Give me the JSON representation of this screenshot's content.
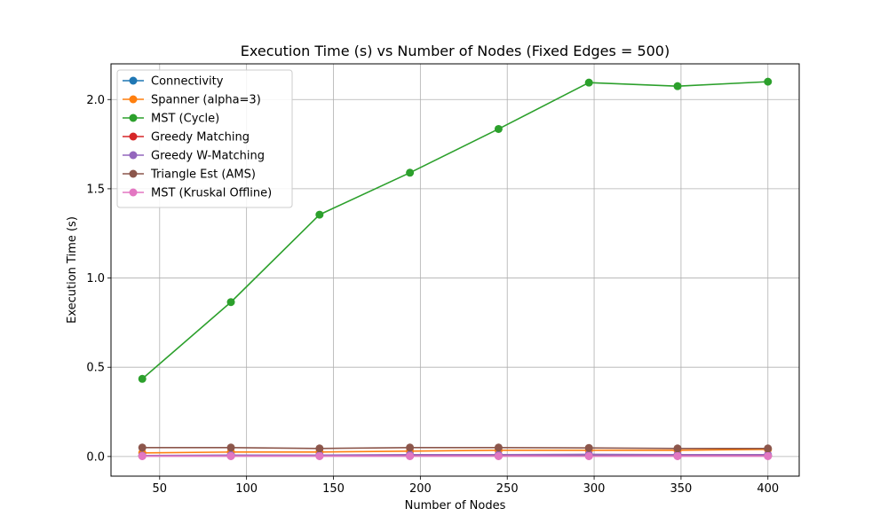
{
  "chart_data": {
    "type": "line",
    "title": "Execution Time (s) vs Number of Nodes (Fixed Edges = 500)",
    "xlabel": "Number of Nodes",
    "ylabel": "Execution Time (s)",
    "xlim": [
      22,
      418
    ],
    "ylim": [
      -0.11,
      2.2
    ],
    "xticks": [
      50,
      100,
      150,
      200,
      250,
      300,
      350,
      400
    ],
    "yticks": [
      0.0,
      0.5,
      1.0,
      1.5,
      2.0
    ],
    "xtick_labels": [
      "50",
      "100",
      "150",
      "200",
      "250",
      "300",
      "350",
      "400"
    ],
    "ytick_labels": [
      "0.0",
      "0.5",
      "1.0",
      "1.5",
      "2.0"
    ],
    "grid": true,
    "legend_position": "top-left",
    "x": [
      40,
      91,
      142,
      194,
      245,
      297,
      348,
      400
    ],
    "series": [
      {
        "name": "Connectivity",
        "color": "#1f77b4",
        "values": [
          0.005,
          0.005,
          0.005,
          0.005,
          0.005,
          0.005,
          0.005,
          0.005
        ]
      },
      {
        "name": "Spanner (alpha=3)",
        "color": "#ff7f0e",
        "values": [
          0.02,
          0.025,
          0.025,
          0.03,
          0.035,
          0.035,
          0.035,
          0.04
        ]
      },
      {
        "name": "MST (Cycle)",
        "color": "#2ca02c",
        "values": [
          0.435,
          0.865,
          1.355,
          1.59,
          1.835,
          2.095,
          2.075,
          2.1
        ]
      },
      {
        "name": "Greedy Matching",
        "color": "#d62728",
        "values": [
          0.003,
          0.003,
          0.003,
          0.003,
          0.003,
          0.003,
          0.003,
          0.003
        ]
      },
      {
        "name": "Greedy W-Matching",
        "color": "#9467bd",
        "values": [
          0.005,
          0.008,
          0.008,
          0.01,
          0.01,
          0.012,
          0.01,
          0.01
        ]
      },
      {
        "name": "Triangle Est (AMS)",
        "color": "#8c564b",
        "values": [
          0.05,
          0.05,
          0.045,
          0.05,
          0.05,
          0.048,
          0.045,
          0.045
        ]
      },
      {
        "name": "MST (Kruskal Offline)",
        "color": "#e377c2",
        "values": [
          0.002,
          0.002,
          0.002,
          0.002,
          0.002,
          0.002,
          0.002,
          0.002
        ]
      }
    ]
  }
}
